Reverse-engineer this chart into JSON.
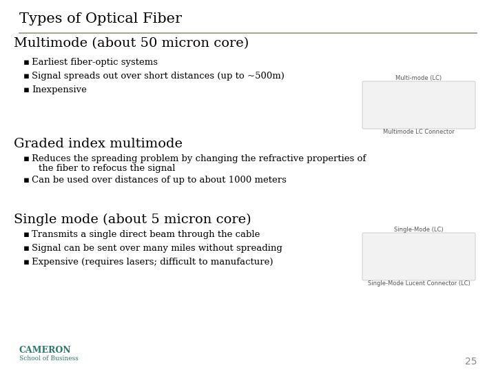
{
  "title": "Types of Optical Fiber",
  "background_color": "#ffffff",
  "title_color": "#000000",
  "title_fontsize": 15,
  "title_font": "serif",
  "separator_color": "#8a9e78",
  "section1_heading": "Multimode (about 50 micron core)",
  "section1_bullets": [
    "Earliest fiber-optic systems",
    "Signal spreads out over short distances (up to ~500m)",
    "Inexpensive"
  ],
  "section2_heading": "Graded index multimode",
  "section2_bullets_line1": "Reduces the spreading problem by changing the refractive properties of",
  "section2_bullets_line2": "the fiber to refocus the signal",
  "section2_bullet2": "Can be used over distances of up to about 1000 meters",
  "section3_heading": "Single mode (about 5 micron core)",
  "section3_bullets": [
    "Transmits a single direct beam through the cable",
    "Signal can be sent over many miles without spreading",
    "Expensive (requires lasers; difficult to manufacture)"
  ],
  "heading_fontsize": 14,
  "heading_color": "#000000",
  "heading_font": "serif",
  "bullet_fontsize": 9.5,
  "bullet_color": "#000000",
  "bullet_font": "serif",
  "footer_cameron_color": "#2a7a6a",
  "footer_cameron_size": 9,
  "footer_school_size": 6.5,
  "page_number": "25",
  "page_number_color": "#888888",
  "img1_label_top": "Multi-mode (LC)",
  "img1_label_bottom": "Multimode LC Connector",
  "img2_label_top": "Single-Mode (LC)",
  "img2_label_bottom": "Single-Mode Lucent Connector (LC)",
  "img_label_fontsize": 6,
  "img_box_color": "#f2f2f2",
  "img_box_edge": "#cccccc"
}
